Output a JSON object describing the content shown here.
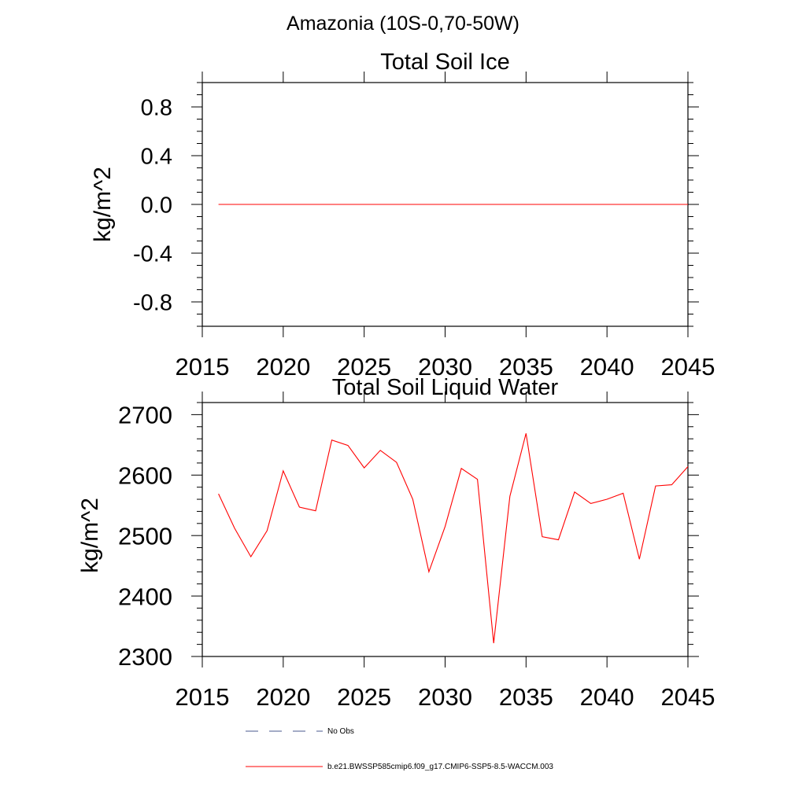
{
  "figure": {
    "title": "Amazonia (10S-0,70-50W)"
  },
  "chart_data": [
    {
      "type": "line",
      "title": "Total Soil Ice",
      "xlabel": "",
      "ylabel": "kg/m^2",
      "xlim": [
        2015,
        2045
      ],
      "ylim": [
        -1.0,
        1.0
      ],
      "xticks": [
        2015,
        2020,
        2025,
        2030,
        2035,
        2040,
        2045
      ],
      "xtick_labels": [
        "2015",
        "2020",
        "2025",
        "2030",
        "2035",
        "2040",
        "2045"
      ],
      "yticks": [
        -0.8,
        -0.4,
        0.0,
        0.4,
        0.8
      ],
      "ytick_labels": [
        "-0.8",
        "-0.4",
        "0.0",
        "0.4",
        "0.8"
      ],
      "grid": false,
      "series": [
        {
          "name": "b.e21.BWSSP585cmip6.f09_g17.CMIP6-SSP5-8.5-WACCM.003",
          "color": "#ff0000",
          "x": [
            2016,
            2017,
            2018,
            2019,
            2020,
            2021,
            2022,
            2023,
            2024,
            2025,
            2026,
            2027,
            2028,
            2029,
            2030,
            2031,
            2032,
            2033,
            2034,
            2035,
            2036,
            2037,
            2038,
            2039,
            2040,
            2041,
            2042,
            2043,
            2044,
            2045
          ],
          "y": [
            0,
            0,
            0,
            0,
            0,
            0,
            0,
            0,
            0,
            0,
            0,
            0,
            0,
            0,
            0,
            0,
            0,
            0,
            0,
            0,
            0,
            0,
            0,
            0,
            0,
            0,
            0,
            0,
            0,
            0
          ]
        }
      ]
    },
    {
      "type": "line",
      "title": "Total Soil Liquid Water",
      "xlabel": "",
      "ylabel": "kg/m^2",
      "xlim": [
        2015,
        2045
      ],
      "ylim": [
        2300,
        2720
      ],
      "xticks": [
        2015,
        2020,
        2025,
        2030,
        2035,
        2040,
        2045
      ],
      "xtick_labels": [
        "2015",
        "2020",
        "2025",
        "2030",
        "2035",
        "2040",
        "2045"
      ],
      "yticks": [
        2300,
        2400,
        2500,
        2600,
        2700
      ],
      "ytick_labels": [
        "2300",
        "2400",
        "2500",
        "2600",
        "2700"
      ],
      "grid": false,
      "series": [
        {
          "name": "b.e21.BWSSP585cmip6.f09_g17.CMIP6-SSP5-8.5-WACCM.003",
          "color": "#ff0000",
          "x": [
            2016,
            2017,
            2018,
            2019,
            2020,
            2021,
            2022,
            2023,
            2024,
            2025,
            2026,
            2027,
            2028,
            2029,
            2030,
            2031,
            2032,
            2033,
            2034,
            2035,
            2036,
            2037,
            2038,
            2039,
            2040,
            2041,
            2042,
            2043,
            2044,
            2045
          ],
          "y": [
            2569,
            2512,
            2465,
            2508,
            2607,
            2547,
            2541,
            2658,
            2649,
            2612,
            2641,
            2621,
            2560,
            2440,
            2515,
            2611,
            2593,
            2322,
            2565,
            2669,
            2498,
            2493,
            2572,
            2553,
            2560,
            2570,
            2461,
            2582,
            2584,
            2614
          ]
        }
      ]
    }
  ],
  "legend": {
    "placement": "bottom",
    "entries": [
      {
        "label": "No Obs",
        "style": "dashed",
        "color": "#4a5a8c"
      },
      {
        "label": "b.e21.BWSSP585cmip6.f09_g17.CMIP6-SSP5-8.5-WACCM.003",
        "style": "solid",
        "color": "#ff0000"
      }
    ]
  }
}
